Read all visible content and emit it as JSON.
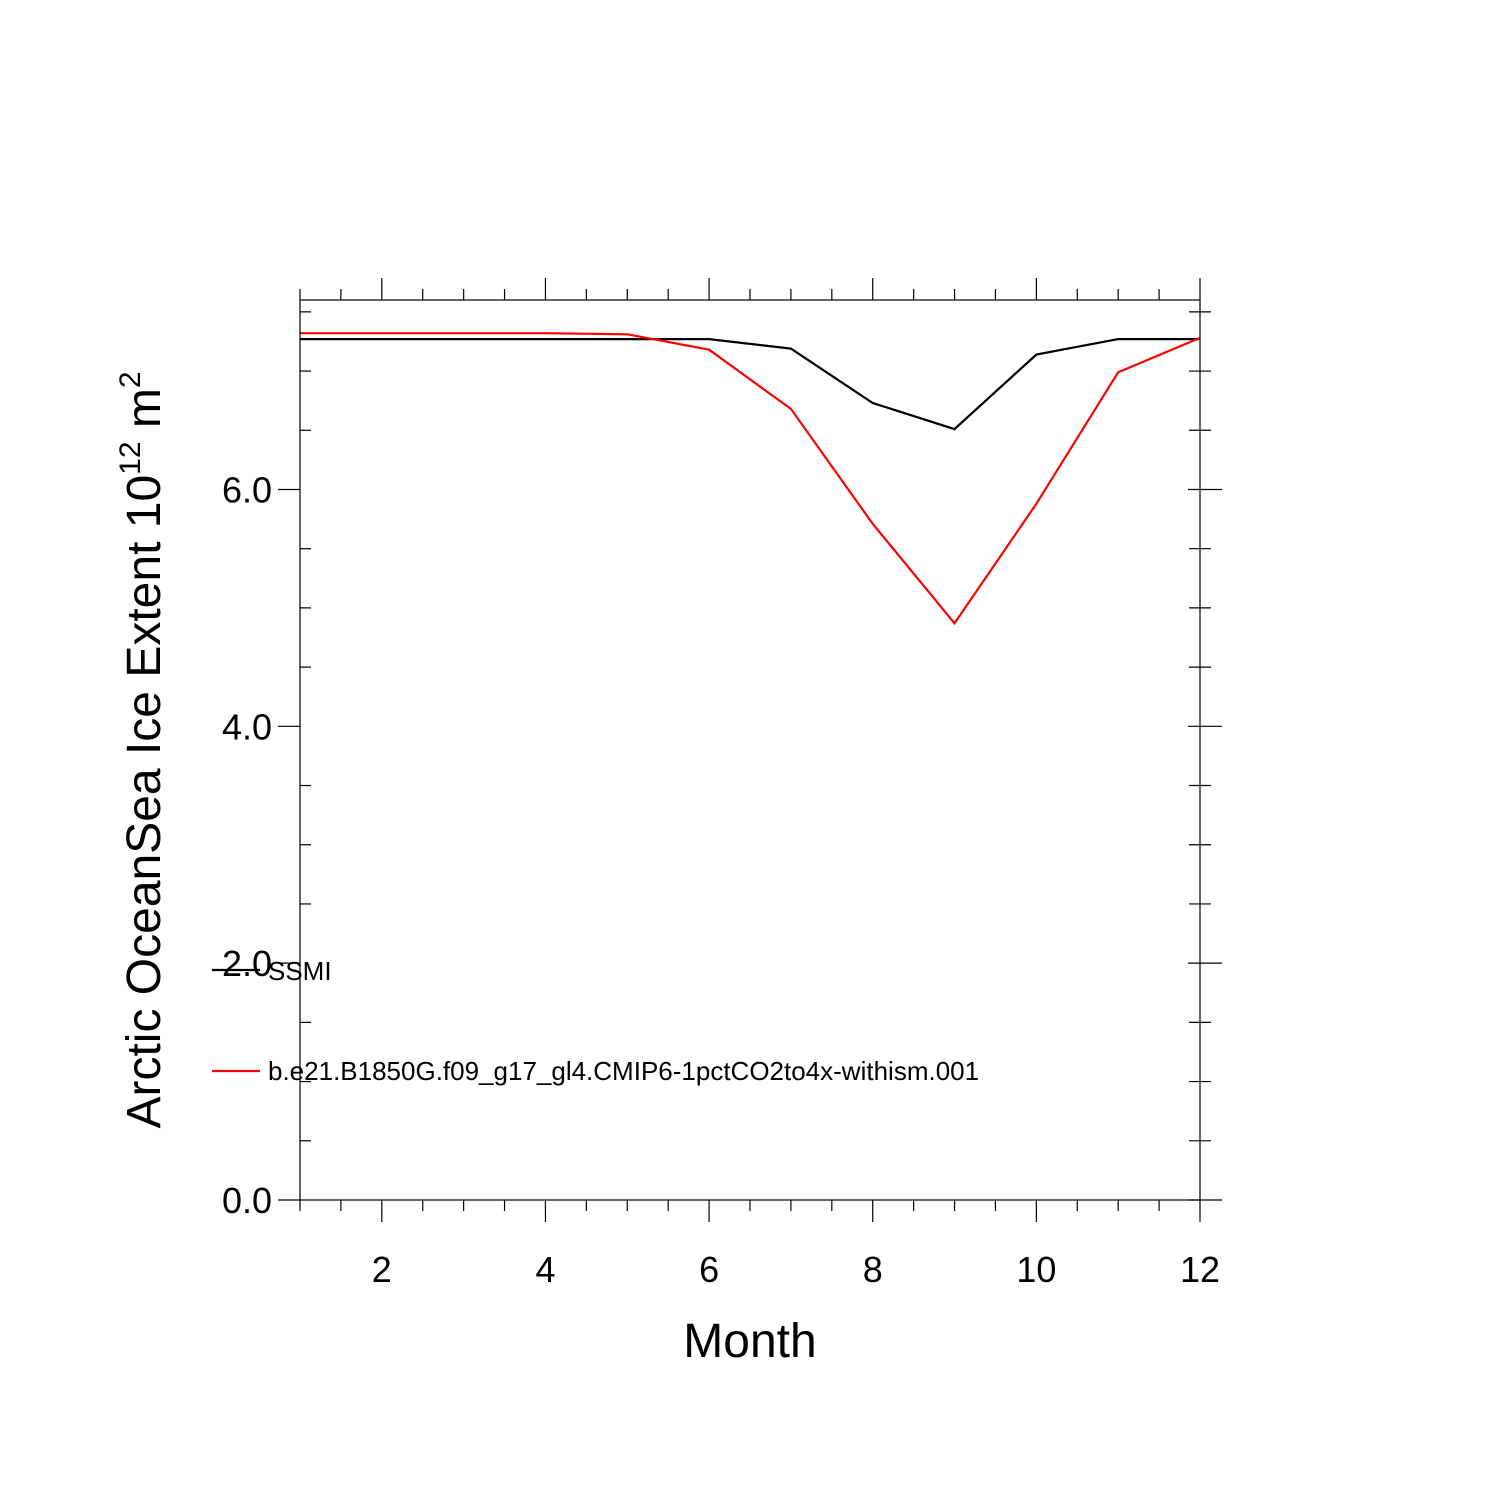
{
  "chart_data": {
    "type": "line",
    "xlabel": "Month",
    "ylabel_main": "Arctic OceanSea Ice Extent 10",
    "ylabel_exp": "12",
    "ylabel_unit": " m",
    "ylabel_unit_exp": "2",
    "xlim": [
      1,
      12
    ],
    "ylim": [
      0,
      7.6
    ],
    "x_major_ticks": [
      2,
      4,
      6,
      8,
      10,
      12
    ],
    "x_tick_labels": [
      "2",
      "4",
      "6",
      "8",
      "10",
      "12"
    ],
    "y_major_ticks": [
      0,
      2,
      4,
      6
    ],
    "y_tick_labels": [
      "0.0",
      "2.0",
      "4.0",
      "6.0"
    ],
    "x_minor_step": 0.5,
    "y_minor_step": 0.5,
    "grid": false,
    "legend_position": "bottom-left",
    "x": [
      1,
      2,
      3,
      4,
      5,
      6,
      7,
      8,
      9,
      10,
      11,
      12
    ],
    "series": [
      {
        "name": "SSMI",
        "color": "#000000",
        "values": [
          7.27,
          7.27,
          7.27,
          7.27,
          7.27,
          7.27,
          7.19,
          6.73,
          6.51,
          7.14,
          7.27,
          7.27
        ]
      },
      {
        "name": "b.e21.B1850G.f09_g17_gl4.CMIP6-1pctCO2to4x-withism.001",
        "color": "#ff0000",
        "values": [
          7.32,
          7.32,
          7.32,
          7.32,
          7.31,
          7.18,
          6.68,
          5.71,
          4.87,
          5.88,
          6.99,
          7.28
        ]
      }
    ]
  }
}
